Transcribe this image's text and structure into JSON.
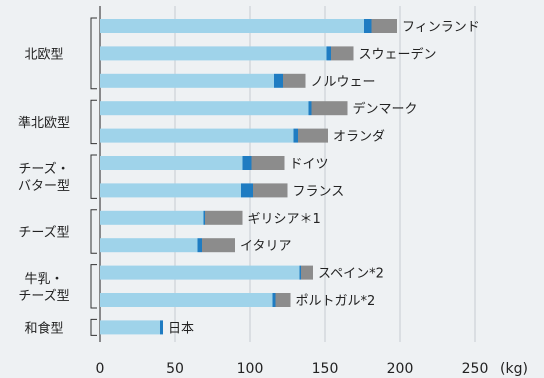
{
  "chart_data": {
    "type": "bar",
    "orientation": "horizontal",
    "stacked": true,
    "unit_label": "(kg)",
    "xlim": [
      0,
      250
    ],
    "xticks": [
      "0",
      "50",
      "100",
      "150",
      "200",
      "250"
    ],
    "grid": true,
    "colors": {
      "segment1": "#9fd3ea",
      "segment2": "#1f7cc2",
      "segment3": "#8c8c8c"
    },
    "groups": [
      {
        "label": [
          "北欧型"
        ],
        "start": 0,
        "end": 2
      },
      {
        "label": [
          "準北欧型"
        ],
        "start": 3,
        "end": 4
      },
      {
        "label": [
          "チーズ・",
          "バター型"
        ],
        "start": 5,
        "end": 6
      },
      {
        "label": [
          "チーズ型"
        ],
        "start": 7,
        "end": 8
      },
      {
        "label": [
          "牛乳・",
          "チーズ型"
        ],
        "start": 9,
        "end": 10
      },
      {
        "label": [
          "和食型"
        ],
        "start": 11,
        "end": 11
      }
    ],
    "categories": [
      "フィンランド",
      "スウェーデン",
      "ノルウェー",
      "デンマーク",
      "オランダ",
      "ドイツ",
      "フランス",
      "ギリシア＊1",
      "イタリア",
      "スペイン*2",
      "ポルトガル*2",
      "日本"
    ],
    "series": [
      {
        "values": [
          176,
          151,
          116,
          139,
          129,
          95,
          94,
          69,
          65,
          133,
          115,
          40
        ]
      },
      {
        "values": [
          5,
          3,
          6,
          2,
          3,
          6,
          8,
          1,
          3,
          1,
          2,
          2
        ]
      },
      {
        "values": [
          17,
          15,
          15,
          24,
          20,
          22,
          23,
          25,
          22,
          8,
          10,
          0
        ]
      }
    ]
  }
}
